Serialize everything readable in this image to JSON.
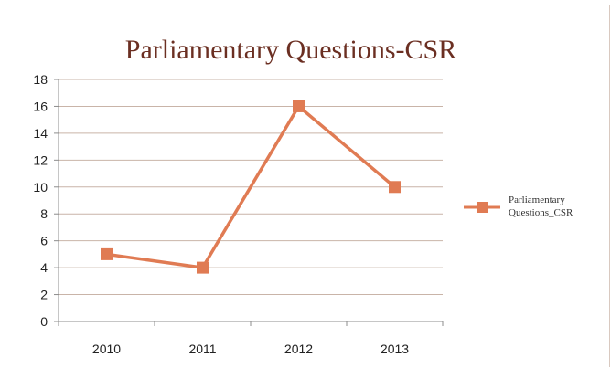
{
  "chart_data": {
    "type": "line",
    "title": "Parliamentary Questions-CSR",
    "categories": [
      "2010",
      "2011",
      "2012",
      "2013"
    ],
    "series": [
      {
        "name": "Parliamentary Questions_CSR",
        "values": [
          5,
          4,
          16,
          10
        ]
      }
    ],
    "yticks": [
      "0",
      "2",
      "4",
      "6",
      "8",
      "10",
      "12",
      "14",
      "16",
      "18"
    ],
    "ylim": [
      0,
      18
    ],
    "grid": true,
    "legend_position": "right",
    "colors": {
      "series": "#e07b53",
      "grid": "#c9b4a8",
      "axis": "#8c8c8c",
      "title": "#6b2f22"
    }
  }
}
